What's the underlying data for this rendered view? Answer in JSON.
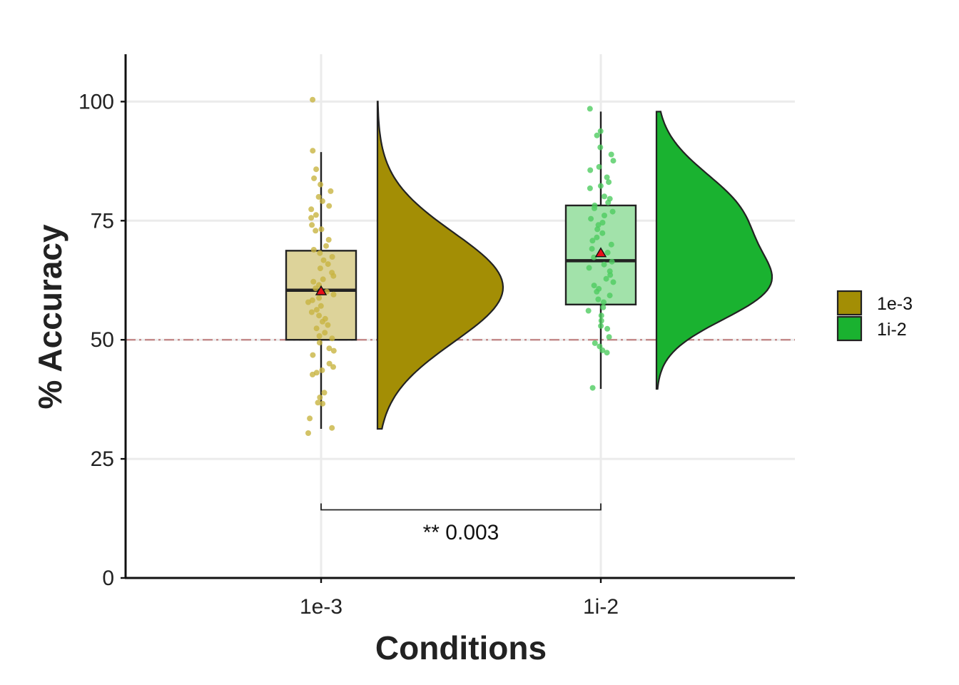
{
  "chart_data": {
    "type": "raincloud",
    "xlabel": "Conditions",
    "ylabel": "% Accuracy",
    "ylim": [
      0,
      110
    ],
    "yticks": [
      0,
      25,
      50,
      75,
      100
    ],
    "grid": true,
    "chance_line": 50,
    "categories": [
      "1e-3",
      "1i-2"
    ],
    "legend": {
      "position": "right",
      "entries": [
        "1e-3",
        "1i-2"
      ]
    },
    "colors": {
      "1e-3": "#a38e05",
      "1i-2": "#1ab230",
      "mean_marker": "#e8101a",
      "chance_line": "#c48a8a"
    },
    "series": [
      {
        "name": "1e-3",
        "box": {
          "whisker_low": 31.3,
          "q1": 50,
          "median": 60.4,
          "q3": 68.7,
          "whisker_high": 89.4
        },
        "mean": 60.2,
        "density": {
          "ymin": 31.3,
          "ymax": 100,
          "peak": 61
        },
        "points": [
          30.4,
          31.5,
          33.5,
          36.6,
          36.8,
          37.9,
          38.9,
          42.7,
          43.1,
          43.6,
          44.3,
          45,
          46.8,
          47.7,
          48.2,
          49.4,
          50.3,
          50.8,
          51.5,
          52.4,
          53.1,
          53.8,
          54.4,
          55.1,
          55.8,
          56.3,
          57.1,
          57.9,
          58.3,
          58.8,
          59.5,
          60.1,
          60.8,
          61.5,
          62.2,
          62.7,
          63.4,
          64.1,
          65,
          65.9,
          66.7,
          67.4,
          68.2,
          68.9,
          69.7,
          71,
          72.9,
          73.2,
          74.1,
          75.6,
          76.2,
          77.4,
          78.1,
          79.1,
          80,
          81.2,
          82.6,
          83.9,
          85.8,
          89.7,
          100.4
        ]
      },
      {
        "name": "1i-2",
        "box": {
          "whisker_low": 39.7,
          "q1": 57.4,
          "median": 66.6,
          "q3": 78.2,
          "whisker_high": 97.9
        },
        "mean": 68.2,
        "density": {
          "ymin": 39.7,
          "ymax": 97.9,
          "peaks": [
            60.5,
            76
          ]
        },
        "points": [
          39.9,
          47.3,
          47.8,
          48.6,
          49.3,
          50.6,
          52.3,
          52.9,
          54,
          55.1,
          56.1,
          56.8,
          57.9,
          58.5,
          59.3,
          60.1,
          60.7,
          61.4,
          62.1,
          62.8,
          63.6,
          64.4,
          65.1,
          65.8,
          66.4,
          67.3,
          68.3,
          69.1,
          70,
          70.8,
          71.5,
          72.4,
          73.2,
          74.1,
          74.6,
          75.4,
          76.1,
          76.9,
          77.6,
          78.2,
          78.8,
          79.6,
          80.1,
          81.8,
          82.3,
          83.1,
          84.1,
          85.6,
          86.3,
          87.6,
          88.9,
          90.4,
          92.9,
          93.8,
          98.5
        ]
      }
    ],
    "comparison": {
      "label": "** 0.003",
      "groups": [
        "1e-3",
        "1i-2"
      ],
      "y": 14.3
    }
  }
}
